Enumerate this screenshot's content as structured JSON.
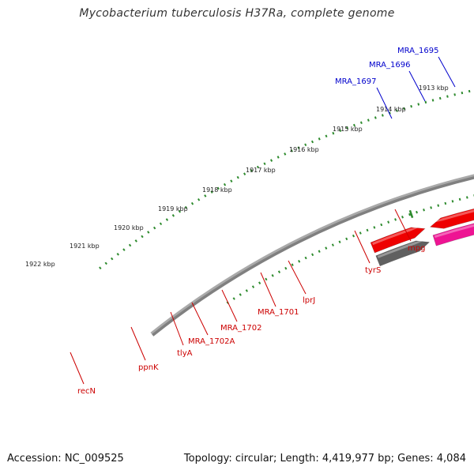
{
  "title": "Mycobacterium tuberculosis H37Ra, complete genome",
  "footer": {
    "accession_label": "Accession:",
    "accession": "NC_009525",
    "topology_text": "Topology: circular; Length: 4,419,977 bp; Genes: 4,084"
  },
  "colors": {
    "backbone": "#808080",
    "tick_dots": "#2e8b2e",
    "label_red": "#cc0000",
    "label_blue": "#0000cc"
  },
  "kbp_ticks": [
    {
      "label": "1913 kbp"
    },
    {
      "label": "1914 kbp"
    },
    {
      "label": "1915 kbp"
    },
    {
      "label": "1916 kbp"
    },
    {
      "label": "1917 kbp"
    },
    {
      "label": "1918 kbp"
    },
    {
      "label": "1919 kbp"
    },
    {
      "label": "1920 kbp"
    },
    {
      "label": "1921 kbp"
    },
    {
      "label": "1922 kbp"
    }
  ],
  "gene_labels": [
    {
      "name": "MRA_1695",
      "color": "blue"
    },
    {
      "name": "MRA_1696",
      "color": "blue"
    },
    {
      "name": "MRA_1697",
      "color": "blue"
    },
    {
      "name": "mpg",
      "color": "red"
    },
    {
      "name": "tyrS",
      "color": "red"
    },
    {
      "name": "lprJ",
      "color": "red"
    },
    {
      "name": "MRA_1701",
      "color": "red"
    },
    {
      "name": "MRA_1702",
      "color": "red"
    },
    {
      "name": "MRA_1702A",
      "color": "red"
    },
    {
      "name": "tlyA",
      "color": "red"
    },
    {
      "name": "ppnK",
      "color": "red"
    },
    {
      "name": "recN",
      "color": "red"
    }
  ]
}
